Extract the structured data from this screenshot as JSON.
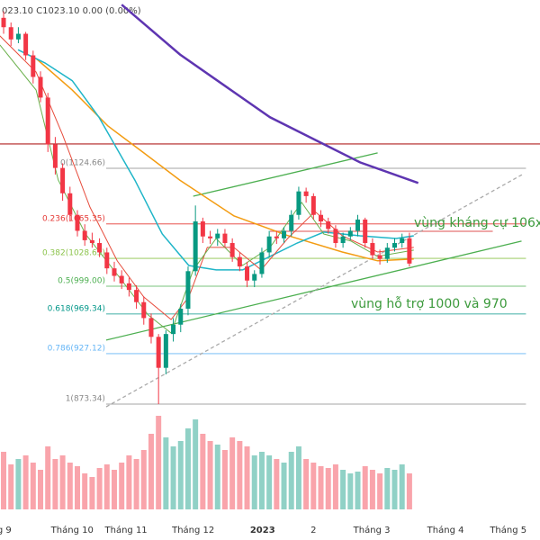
{
  "chart_data": {
    "type": "candlestick",
    "header": "023.10 C1023.10 0.00 (0.00%)",
    "annotations": [
      "vùng kháng cự 106x",
      "vùng hỗ trợ 1000 và 970"
    ],
    "xlim": [
      -0.49,
      72.7
    ],
    "ylim": [
      728.5,
      1304
    ],
    "vlim": [
      0,
      1000
    ],
    "xticks": [
      {
        "value": 0.1,
        "label": "g 9"
      },
      {
        "value": 9.3,
        "label": "Tháng 10"
      },
      {
        "value": 16.6,
        "label": "Tháng 11"
      },
      {
        "value": 25.7,
        "label": "Tháng 12"
      },
      {
        "value": 35.1,
        "label": "2023"
      },
      {
        "value": 42,
        "label": "2"
      },
      {
        "value": 49.9,
        "label": "Tháng 3"
      },
      {
        "value": 59.9,
        "label": "Tháng 4"
      },
      {
        "value": 68.4,
        "label": "Tháng 5"
      }
    ],
    "up_color": "#089981",
    "down_color": "#f23645",
    "open": [
      1285,
      1275,
      1262,
      1268,
      1245,
      1222,
      1200,
      1150,
      1125,
      1098,
      1075,
      1058,
      1048,
      1045,
      1035,
      1018,
      1010,
      1002,
      995,
      982,
      965,
      945,
      912,
      948,
      958,
      975,
      1015,
      1068,
      1052,
      1050,
      1055,
      1045,
      1030,
      1020,
      1005,
      1012,
      1035,
      1052,
      1050,
      1058,
      1075,
      1100,
      1095,
      1075,
      1068,
      1060,
      1045,
      1052,
      1058,
      1070,
      1045,
      1032,
      1028,
      1040,
      1045,
      1050
    ],
    "high": [
      1292,
      1280,
      1275,
      1270,
      1250,
      1228,
      1205,
      1158,
      1130,
      1105,
      1080,
      1065,
      1056,
      1050,
      1040,
      1025,
      1016,
      1008,
      1000,
      988,
      970,
      948,
      952,
      965,
      980,
      1020,
      1085,
      1072,
      1058,
      1060,
      1060,
      1050,
      1035,
      1025,
      1016,
      1040,
      1058,
      1058,
      1062,
      1080,
      1105,
      1104,
      1098,
      1080,
      1072,
      1064,
      1056,
      1062,
      1075,
      1072,
      1050,
      1038,
      1045,
      1050,
      1055,
      1056
    ],
    "low": [
      1268,
      1255,
      1258,
      1240,
      1215,
      1195,
      1142,
      1118,
      1090,
      1068,
      1052,
      1042,
      1040,
      1030,
      1012,
      1004,
      996,
      988,
      975,
      958,
      938,
      873.34,
      905,
      940,
      950,
      968,
      1010,
      1045,
      1044,
      1042,
      1040,
      1025,
      1015,
      998,
      998,
      1008,
      1030,
      1044,
      1045,
      1052,
      1070,
      1088,
      1070,
      1062,
      1055,
      1040,
      1040,
      1048,
      1052,
      1040,
      1028,
      1022,
      1024,
      1036,
      1040,
      1020
    ],
    "close": [
      1275,
      1262,
      1268,
      1245,
      1222,
      1200,
      1150,
      1125,
      1098,
      1075,
      1058,
      1048,
      1045,
      1035,
      1018,
      1010,
      1002,
      995,
      982,
      965,
      945,
      912,
      948,
      958,
      975,
      1015,
      1068,
      1052,
      1050,
      1055,
      1045,
      1030,
      1020,
      1005,
      1012,
      1035,
      1052,
      1050,
      1058,
      1075,
      1100,
      1095,
      1075,
      1068,
      1060,
      1045,
      1052,
      1058,
      1070,
      1045,
      1032,
      1028,
      1040,
      1045,
      1050,
      1023.1
    ],
    "volume": [
      320,
      250,
      280,
      300,
      260,
      220,
      350,
      280,
      300,
      260,
      240,
      200,
      180,
      230,
      250,
      220,
      260,
      300,
      280,
      330,
      420,
      520,
      400,
      350,
      380,
      450,
      500,
      420,
      380,
      360,
      330,
      400,
      380,
      350,
      300,
      320,
      300,
      280,
      260,
      320,
      350,
      280,
      260,
      240,
      230,
      250,
      220,
      200,
      210,
      240,
      220,
      200,
      230,
      220,
      250,
      200
    ],
    "lines": [
      {
        "color": "#5e35b1",
        "width": 2.5,
        "x": [
          16,
          23.9,
          36.1,
          48.3,
          56.2
        ],
        "values": [
          1299,
          1246,
          1179,
          1131,
          1109
        ]
      },
      {
        "color": "#f39c12",
        "width": 1.5,
        "x": [
          4.4,
          9.3,
          14.1,
          19,
          23.9,
          31.2,
          38.5,
          45.9,
          50.7,
          55.6
        ],
        "values": [
          1241.7,
          1208,
          1170,
          1141,
          1112,
          1074,
          1053,
          1035.4,
          1026,
          1028
        ]
      },
      {
        "color": "#1fb5c8",
        "width": 1.5,
        "x": [
          1.95,
          5.6,
          9.3,
          12.9,
          17.8,
          21.5,
          25.1,
          28.8,
          32.4,
          36.1,
          39.8,
          43.4,
          48.3,
          53.2,
          55.6
        ],
        "values": [
          1251,
          1237,
          1218,
          1179.3,
          1112,
          1054.6,
          1021,
          1016.3,
          1016.3,
          1030.7,
          1045,
          1056.6,
          1052.7,
          1049.8,
          1052.7
        ]
      },
      {
        "color": "#e74c3c",
        "width": 1,
        "x": [
          -0.5,
          4.4,
          8,
          11.7,
          15.4,
          19,
          22.7,
          25.1,
          27.6,
          31.2,
          34.9,
          38.5,
          42.2,
          45.9,
          50.7,
          55.6
        ],
        "values": [
          1265.7,
          1227.3,
          1160.2,
          1083.4,
          1025.9,
          987.5,
          963.5,
          987.5,
          1040.3,
          1040.3,
          1016.3,
          1049.8,
          1078.6,
          1052.7,
          1035.4,
          1040.3
        ]
      },
      {
        "color": "#6ab04c",
        "width": 1,
        "x": [
          -0.5,
          4.4,
          7.4,
          11.1,
          15.4,
          19.6,
          22.7,
          25.7,
          28.8,
          32.4,
          36.1,
          40.4,
          43.4,
          47.1,
          50.7,
          55.6
        ],
        "values": [
          1256.1,
          1208.1,
          1112.2,
          1054.6,
          1011.5,
          968.3,
          949.1,
          1016.3,
          1049.8,
          1021.1,
          1040.3,
          1088.2,
          1054.6,
          1047,
          1030.7,
          1037.4
        ]
      }
    ],
    "trendlines": [
      {
        "color": "#4caf50",
        "dash": false,
        "x": [
          25.7,
          50.7
        ],
        "values": [
          1094.9,
          1141
        ]
      },
      {
        "color": "#4caf50",
        "dash": false,
        "x": [
          13.9,
          70.2
        ],
        "values": [
          941.5,
          1047
        ]
      },
      {
        "color": "#aaaaaa",
        "dash": true,
        "x": [
          13.9,
          70.5
        ],
        "values": [
          870.5,
          1118.9
        ]
      }
    ],
    "hlines": [
      {
        "color": "#b22222",
        "x": [
          -0.49,
          72.7
        ],
        "value": 1150.6
      },
      {
        "color": "#e57373",
        "x": [
          36.1,
          66.3
        ],
        "value": 1057.5
      }
    ],
    "fib_x": [
      13.9,
      70.8
    ],
    "fib_levels": [
      {
        "value": 1124.66,
        "label": "0(1124.66)",
        "color": "#888888"
      },
      {
        "value": 1065.35,
        "label": "0.236(1065.35)",
        "color": "#e53935"
      },
      {
        "value": 1028.65,
        "label": "0.382(1028.65)",
        "color": "#8bc34a"
      },
      {
        "value": 999.0,
        "label": "0.5(999.00)",
        "color": "#4caf50"
      },
      {
        "value": 969.34,
        "label": "0.618(969.34)",
        "color": "#009688"
      },
      {
        "value": 927.12,
        "label": "0.786(927.12)",
        "color": "#64b5f6"
      },
      {
        "value": 873.34,
        "label": "1(873.34)",
        "color": "#888888"
      }
    ]
  }
}
